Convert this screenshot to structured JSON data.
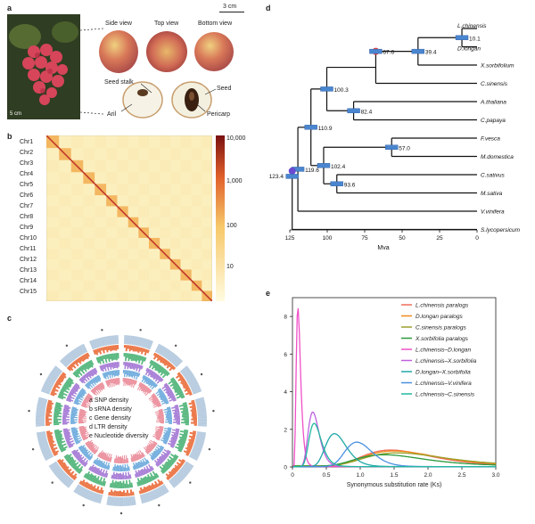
{
  "panels": {
    "a": "a",
    "b": "b",
    "c": "c",
    "d": "d",
    "e": "e"
  },
  "panel_a": {
    "scale_bar": "3 cm",
    "photo_scale": "5 cm",
    "views": [
      "Side view",
      "Top view",
      "Bottom view"
    ],
    "labels": {
      "seed_stalk": "Seed stalk",
      "seed": "Seed",
      "aril": "Aril",
      "pericarp": "Pericarp"
    }
  },
  "panel_b": {
    "chromosomes": [
      "Chr1",
      "Chr2",
      "Chr3",
      "Chr4",
      "Chr5",
      "Chr6",
      "Chr7",
      "Chr8",
      "Chr9",
      "Chr10",
      "Chr11",
      "Chr12",
      "Chr13",
      "Chr14",
      "Chr15"
    ],
    "colorbar_ticks": [
      "10,000",
      "1,000",
      "100",
      "10"
    ],
    "colors": {
      "low": "#fdf5cf",
      "mid": "#f7c86a",
      "high": "#8c1a1a"
    }
  },
  "panel_c": {
    "legend": [
      "a SNP density",
      "b sRNA density",
      "c Gene density",
      "d LTR density",
      "e Nucleotide diversity"
    ]
  },
  "chart_data": [
    {
      "type": "tree",
      "title": "",
      "xlabel": "Mya",
      "xticks": [
        "125",
        "100",
        "75",
        "50",
        "25",
        "0"
      ],
      "taxa": [
        "L.chinensis",
        "D.longan",
        "X.sorbifolium",
        "C.sinensis",
        "A.thaliana",
        "C.papaya",
        "F.vesca",
        "M.domestica",
        "C.sativus",
        "M.sativa",
        "V.vinifera",
        "S.lycopersicum"
      ],
      "node_ages": [
        "10.1",
        "39.4",
        "67.6",
        "100.3",
        "82.4",
        "110.9",
        "57.0",
        "102.4",
        "119.6",
        "93.6",
        "123.4"
      ]
    },
    {
      "type": "line",
      "xlabel": "Synonymous substitution rate (Ks)",
      "ylabel": "",
      "xlim": [
        0,
        3.0
      ],
      "ylim": [
        0,
        9
      ],
      "xticks": [
        "0",
        "0.5",
        "1.0",
        "1.5",
        "2.0",
        "2.5",
        "3.0"
      ],
      "yticks": [
        "0",
        "2",
        "4",
        "6",
        "8"
      ],
      "series": [
        {
          "name": "L.chinensis paralogs",
          "color": "#f06c5a",
          "peak_x": 1.45,
          "peak_y": 0.85,
          "width": 0.55
        },
        {
          "name": "D.longan paralogs",
          "color": "#f08a1c",
          "peak_x": 1.5,
          "peak_y": 0.8,
          "width": 0.6
        },
        {
          "name": "C.sinensis paralogs",
          "color": "#9aa12a",
          "peak_x": 1.55,
          "peak_y": 0.7,
          "width": 0.65
        },
        {
          "name": "X.sorbifolia paralogs",
          "color": "#2a9a3c",
          "peak_x": 1.35,
          "peak_y": 0.6,
          "width": 0.55
        },
        {
          "name": "L.chinensis–D.longan",
          "color": "#f050c8",
          "peak_x": 0.08,
          "peak_y": 8.5,
          "width": 0.035
        },
        {
          "name": "L.chinensis–X.sorbifolia",
          "color": "#c060e0",
          "peak_x": 0.3,
          "peak_y": 2.9,
          "width": 0.09
        },
        {
          "name": "D.longan–X.sorbifolia",
          "color": "#20a8a8",
          "peak_x": 0.62,
          "peak_y": 1.75,
          "width": 0.17
        },
        {
          "name": "L.chinensis–V.vinifera",
          "color": "#4a90e0",
          "peak_x": 0.95,
          "peak_y": 1.3,
          "width": 0.22
        },
        {
          "name": "L.chinensis–C.sinensis",
          "color": "#20b8a0",
          "peak_x": 0.32,
          "peak_y": 2.3,
          "width": 0.1
        }
      ]
    }
  ]
}
